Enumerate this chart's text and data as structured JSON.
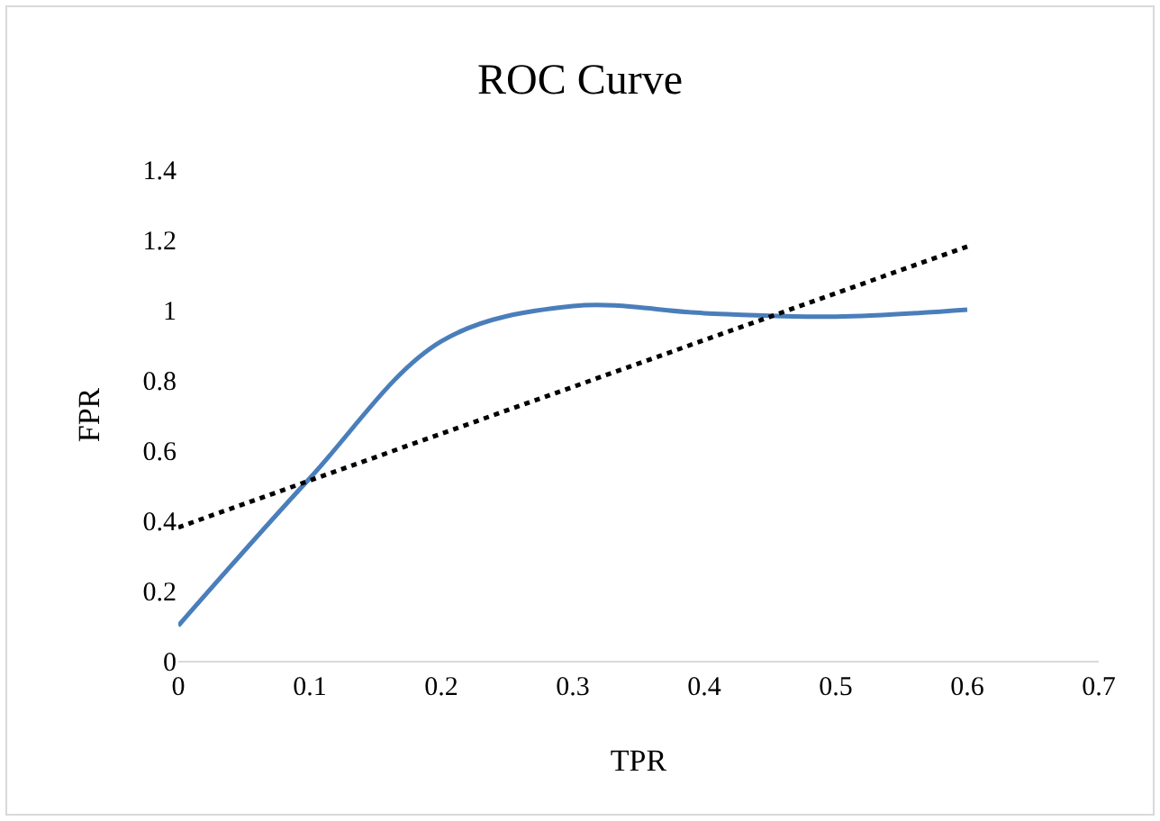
{
  "chart_data": {
    "type": "line",
    "title": "ROC Curve",
    "xlabel": "TPR",
    "ylabel": "FPR",
    "x": [
      0,
      0.1,
      0.2,
      0.3,
      0.4,
      0.5,
      0.6
    ],
    "series": [
      {
        "color": "#4a7ebb",
        "values": [
          0.1,
          0.52,
          0.91,
          1.01,
          0.99,
          0.98,
          1.0
        ]
      },
      {
        "type": "line",
        "color": "#000000",
        "line_style": "dotted",
        "x": [
          0,
          0.6
        ],
        "values": [
          0.38,
          1.18
        ]
      }
    ],
    "xlim": [
      0,
      0.7
    ],
    "xticks": [
      0,
      0.1,
      0.2,
      0.3,
      0.4,
      0.5,
      0.6,
      0.7
    ],
    "ylim": [
      0,
      1.4
    ],
    "yticks": [
      0,
      0.2,
      0.4,
      0.6,
      0.8,
      1,
      1.2,
      1.4
    ],
    "grid": false,
    "legend": false,
    "marker": "none",
    "line_style": "solid"
  }
}
